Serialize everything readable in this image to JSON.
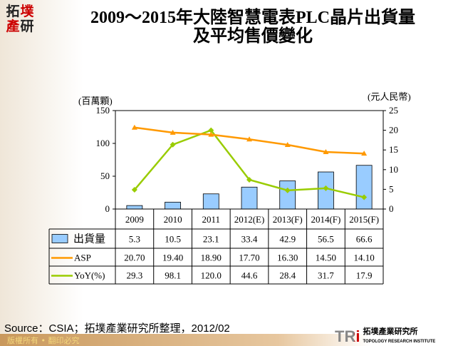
{
  "logo": {
    "chars": [
      "拓",
      "墣",
      "產",
      "研"
    ]
  },
  "title_line1": "2009～2015年大陸智慧電表PLC晶片出貨量",
  "title_line2": "及平均售價變化",
  "chart_data": {
    "type": "bar+line",
    "categories": [
      "2009",
      "2010",
      "2011",
      "2012(E)",
      "2013(F)",
      "2014(F)",
      "2015(F)"
    ],
    "y_left_label": "(百萬顆)",
    "y_left_range": [
      0,
      150
    ],
    "y_left_ticks": [
      "0",
      "50",
      "100",
      "150"
    ],
    "y_right_label": "(元人民幣)",
    "y_right_range": [
      0,
      25
    ],
    "y_right_ticks": [
      "0",
      "5",
      "10",
      "15",
      "20",
      "25"
    ],
    "series": [
      {
        "name": "出貨量",
        "type": "bar",
        "axis": "left",
        "color": "#99ccff",
        "values": [
          5.3,
          10.5,
          23.1,
          33.4,
          42.9,
          56.5,
          66.6
        ],
        "labels": [
          "5.3",
          "10.5",
          "23.1",
          "33.4",
          "42.9",
          "56.5",
          "66.6"
        ]
      },
      {
        "name": "ASP",
        "type": "line",
        "axis": "right",
        "color": "#ff9900",
        "marker": "triangle",
        "values": [
          20.7,
          19.4,
          18.9,
          17.7,
          16.3,
          14.5,
          14.1
        ],
        "labels": [
          "20.70",
          "19.40",
          "18.90",
          "17.70",
          "16.30",
          "14.50",
          "14.10"
        ]
      },
      {
        "name": "YoY(%)",
        "type": "line",
        "axis": "left",
        "color": "#99cc00",
        "marker": "diamond",
        "values": [
          29.3,
          98.1,
          120.0,
          44.6,
          28.4,
          31.7,
          17.9
        ],
        "labels": [
          "29.3",
          "98.1",
          "120.0",
          "44.6",
          "28.4",
          "31.7",
          "17.9"
        ]
      }
    ],
    "grid": false,
    "legend": "data-table"
  },
  "source": "Source：CSIA；拓墣產業研究所整理，2012/02",
  "copyright": "版權所有 • 翻印必究",
  "brand": {
    "mark": "TRi",
    "name_zh": "拓墣產業研究所",
    "name_en": "TOPOLOGY RESEARCH INSTITUTE"
  }
}
